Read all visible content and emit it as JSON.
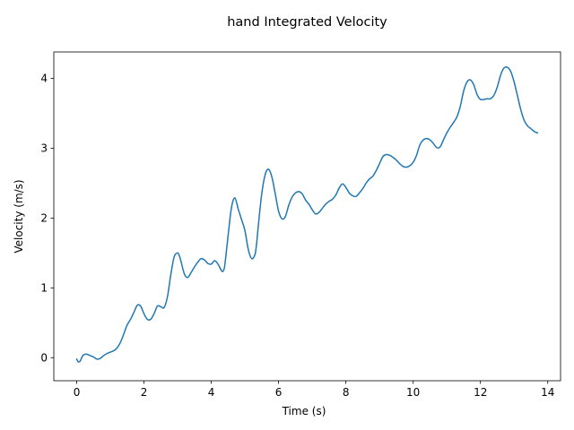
{
  "chart_data": {
    "type": "line",
    "title": "hand Integrated Velocity",
    "xlabel": "Time (s)",
    "ylabel": "Velocity (m/s)",
    "xlim": [
      -0.68,
      14.38
    ],
    "ylim": [
      -0.33,
      4.38
    ],
    "xticks": [
      0,
      2,
      4,
      6,
      8,
      10,
      12,
      14
    ],
    "xtick_labels": [
      "0",
      "2",
      "4",
      "6",
      "8",
      "10",
      "12",
      "14"
    ],
    "yticks": [
      0,
      1,
      2,
      3,
      4
    ],
    "ytick_labels": [
      "0",
      "1",
      "2",
      "3",
      "4"
    ],
    "grid": false,
    "legend": "none",
    "series": [
      {
        "color": "#1f77b4",
        "x": [
          0.0,
          0.05,
          0.1,
          0.15,
          0.2,
          0.3,
          0.4,
          0.5,
          0.6,
          0.7,
          0.8,
          0.9,
          1.0,
          1.1,
          1.2,
          1.3,
          1.4,
          1.5,
          1.6,
          1.7,
          1.8,
          1.9,
          2.0,
          2.1,
          2.2,
          2.3,
          2.4,
          2.5,
          2.6,
          2.7,
          2.8,
          2.9,
          3.0,
          3.05,
          3.1,
          3.2,
          3.3,
          3.4,
          3.5,
          3.6,
          3.7,
          3.8,
          3.9,
          4.0,
          4.1,
          4.2,
          4.3,
          4.35,
          4.4,
          4.5,
          4.6,
          4.7,
          4.8,
          4.9,
          5.0,
          5.1,
          5.2,
          5.3,
          5.35,
          5.4,
          5.5,
          5.6,
          5.7,
          5.8,
          5.9,
          6.0,
          6.1,
          6.2,
          6.3,
          6.4,
          6.5,
          6.6,
          6.7,
          6.8,
          6.9,
          7.0,
          7.1,
          7.2,
          7.3,
          7.4,
          7.5,
          7.6,
          7.7,
          7.8,
          7.9,
          8.0,
          8.1,
          8.2,
          8.3,
          8.4,
          8.5,
          8.6,
          8.7,
          8.8,
          8.9,
          9.0,
          9.1,
          9.2,
          9.3,
          9.4,
          9.5,
          9.6,
          9.7,
          9.8,
          9.9,
          10.0,
          10.1,
          10.2,
          10.3,
          10.4,
          10.5,
          10.6,
          10.7,
          10.8,
          10.9,
          11.0,
          11.1,
          11.2,
          11.3,
          11.4,
          11.5,
          11.6,
          11.7,
          11.8,
          11.9,
          12.0,
          12.1,
          12.2,
          12.3,
          12.4,
          12.5,
          12.6,
          12.7,
          12.8,
          12.9,
          13.0,
          13.1,
          13.2,
          13.3,
          13.4,
          13.5,
          13.6,
          13.7
        ],
        "values": [
          -0.02,
          -0.06,
          -0.05,
          0.0,
          0.04,
          0.05,
          0.03,
          0.01,
          -0.02,
          -0.01,
          0.03,
          0.06,
          0.08,
          0.1,
          0.14,
          0.22,
          0.34,
          0.47,
          0.55,
          0.65,
          0.75,
          0.74,
          0.63,
          0.55,
          0.55,
          0.63,
          0.74,
          0.73,
          0.72,
          0.88,
          1.2,
          1.45,
          1.5,
          1.46,
          1.38,
          1.2,
          1.15,
          1.22,
          1.3,
          1.37,
          1.42,
          1.4,
          1.35,
          1.34,
          1.39,
          1.34,
          1.25,
          1.24,
          1.32,
          1.75,
          2.15,
          2.29,
          2.13,
          1.98,
          1.82,
          1.55,
          1.42,
          1.48,
          1.65,
          1.9,
          2.35,
          2.62,
          2.7,
          2.59,
          2.35,
          2.1,
          1.99,
          2.02,
          2.18,
          2.3,
          2.36,
          2.38,
          2.35,
          2.26,
          2.2,
          2.12,
          2.06,
          2.08,
          2.14,
          2.2,
          2.24,
          2.27,
          2.33,
          2.43,
          2.49,
          2.44,
          2.36,
          2.32,
          2.31,
          2.36,
          2.42,
          2.5,
          2.56,
          2.6,
          2.68,
          2.78,
          2.88,
          2.91,
          2.9,
          2.87,
          2.83,
          2.78,
          2.74,
          2.73,
          2.75,
          2.8,
          2.9,
          3.05,
          3.12,
          3.14,
          3.12,
          3.07,
          3.01,
          3.02,
          3.12,
          3.22,
          3.3,
          3.37,
          3.45,
          3.6,
          3.82,
          3.95,
          3.98,
          3.91,
          3.77,
          3.7,
          3.7,
          3.71,
          3.71,
          3.76,
          3.88,
          4.05,
          4.15,
          4.16,
          4.1,
          3.95,
          3.75,
          3.55,
          3.4,
          3.32,
          3.28,
          3.24,
          3.22
        ]
      }
    ]
  }
}
